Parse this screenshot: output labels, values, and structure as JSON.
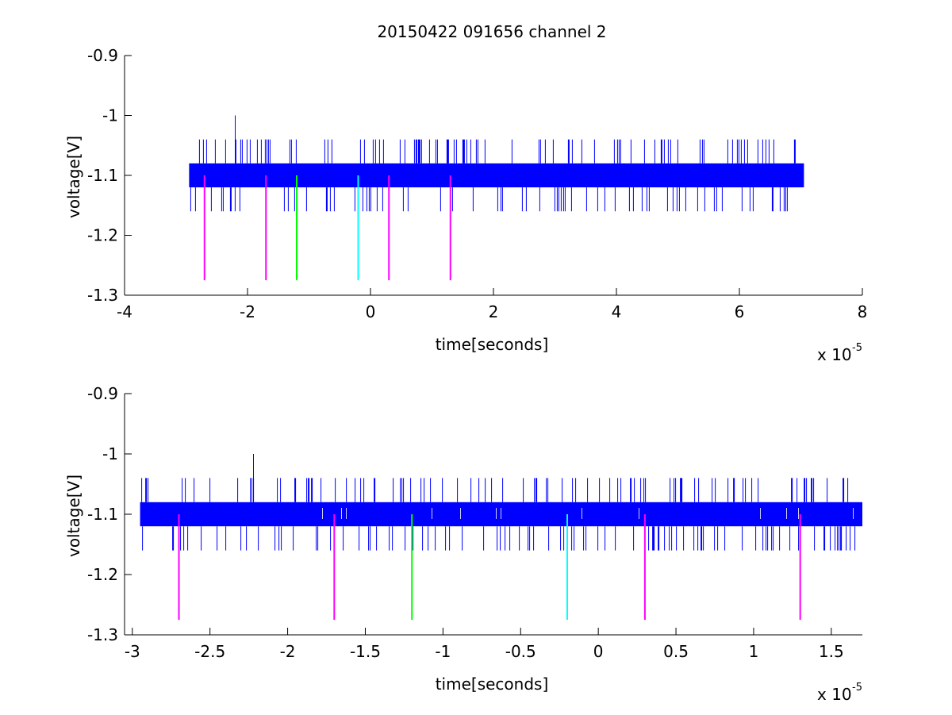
{
  "figure": {
    "title": "20150422 091656 channel 2",
    "colors": {
      "signal": "#0000ff",
      "axes": "#000000",
      "magenta": "#ff00ff",
      "green": "#00ff00",
      "cyan": "#00ffff",
      "background": "#ffffff"
    }
  },
  "chart_data": [
    {
      "type": "line",
      "title": "20150422 091656 channel 2",
      "xlabel": "time[seconds]",
      "ylabel": "voltage[V]",
      "x_exponent_label": "x 10",
      "x_exponent": "-5",
      "xlim": [
        -4,
        8
      ],
      "ylim": [
        -1.3,
        -0.9
      ],
      "y_reversed": true,
      "xticks": [
        -4,
        -2,
        0,
        2,
        4,
        6,
        8
      ],
      "xtick_labels": [
        "-4",
        "-2",
        "0",
        "2",
        "4",
        "6",
        "8"
      ],
      "yticks": [
        -0.9,
        -1,
        -1.1,
        -1.2,
        -1.3
      ],
      "ytick_labels": [
        "-0.9",
        "-1",
        "-1.1",
        "-1.2",
        "-1.3"
      ],
      "grid": false,
      "series": [
        {
          "color": "#0000ff",
          "description_band": {
            "x_start": -2.95,
            "x_end": 7.05,
            "y_low": -1.12,
            "y_high": -1.08
          },
          "spike_high": -1.04,
          "spike_low": -1.16,
          "peak": {
            "x": -2.2,
            "y": -1.0
          }
        }
      ],
      "markers": [
        {
          "x": -2.7,
          "y_from": -1.1,
          "y_to": -1.275,
          "color": "#ff00ff"
        },
        {
          "x": -1.7,
          "y_from": -1.1,
          "y_to": -1.275,
          "color": "#ff00ff"
        },
        {
          "x": -1.2,
          "y_from": -1.1,
          "y_to": -1.275,
          "color": "#00ff00"
        },
        {
          "x": -0.2,
          "y_from": -1.1,
          "y_to": -1.275,
          "color": "#00ffff"
        },
        {
          "x": 0.3,
          "y_from": -1.1,
          "y_to": -1.275,
          "color": "#ff00ff"
        },
        {
          "x": 1.3,
          "y_from": -1.1,
          "y_to": -1.275,
          "color": "#ff00ff"
        }
      ]
    },
    {
      "type": "line",
      "title": "",
      "xlabel": "time[seconds]",
      "ylabel": "voltage[V]",
      "x_exponent_label": "x 10",
      "x_exponent": "-5",
      "xlim": [
        -3.05,
        1.7
      ],
      "ylim": [
        -1.3,
        -0.9
      ],
      "y_reversed": true,
      "xticks": [
        -3,
        -2.5,
        -2,
        -1.5,
        -1,
        -0.5,
        0,
        0.5,
        1,
        1.5
      ],
      "xtick_labels": [
        "-3",
        "-2.5",
        "-2",
        "-1.5",
        "-1",
        "-0.5",
        "0",
        "0.5",
        "1",
        "1.5"
      ],
      "yticks": [
        -0.9,
        -1,
        -1.1,
        -1.2,
        -1.3
      ],
      "ytick_labels": [
        "-0.9",
        "-1",
        "-1.1",
        "-1.2",
        "-1.3"
      ],
      "grid": false,
      "series": [
        {
          "color": "#0000ff",
          "description_band": {
            "x_start": -2.95,
            "x_end": 1.7,
            "y_low": -1.12,
            "y_high": -1.08
          },
          "spike_high": -1.04,
          "spike_low": -1.16,
          "peak": {
            "x": -2.22,
            "y": -1.0
          }
        }
      ],
      "markers": [
        {
          "x": -2.7,
          "y_from": -1.1,
          "y_to": -1.275,
          "color": "#ff00ff"
        },
        {
          "x": -1.7,
          "y_from": -1.1,
          "y_to": -1.275,
          "color": "#ff00ff"
        },
        {
          "x": -1.2,
          "y_from": -1.1,
          "y_to": -1.275,
          "color": "#00ff00"
        },
        {
          "x": -0.2,
          "y_from": -1.1,
          "y_to": -1.275,
          "color": "#00ffff"
        },
        {
          "x": 0.3,
          "y_from": -1.1,
          "y_to": -1.275,
          "color": "#ff00ff"
        },
        {
          "x": 1.3,
          "y_from": -1.1,
          "y_to": -1.275,
          "color": "#ff00ff"
        }
      ]
    }
  ]
}
